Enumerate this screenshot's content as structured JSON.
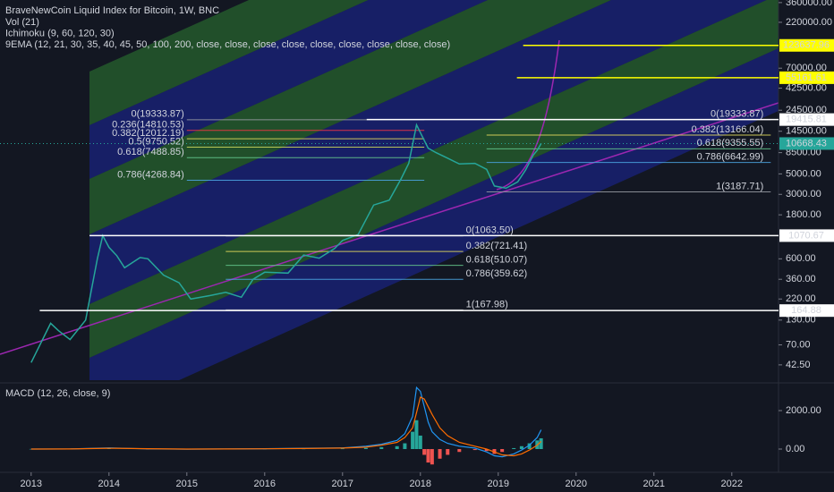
{
  "chart_data": [
    {
      "type": "line",
      "log_scale": true,
      "title": "BraveNewCoin Liquid Index for Bitcoin, 1W, BNC",
      "indicators": [
        "Vol (21)",
        "Ichimoku (9, 60, 120, 30)",
        "9EMA (12, 21, 30, 35, 40, 45, 50, 100, 200, close, close, close, close, close, close, close, close, close)"
      ],
      "x": [
        2013.0,
        2013.25,
        2013.35,
        2013.5,
        2013.7,
        2013.85,
        2013.92,
        2014.0,
        2014.1,
        2014.2,
        2014.4,
        2014.5,
        2014.7,
        2014.9,
        2015.05,
        2015.3,
        2015.5,
        2015.7,
        2015.85,
        2016.0,
        2016.3,
        2016.5,
        2016.7,
        2016.9,
        2017.0,
        2017.2,
        2017.4,
        2017.6,
        2017.75,
        2017.85,
        2017.95,
        2018.0,
        2018.1,
        2018.2,
        2018.35,
        2018.5,
        2018.7,
        2018.85,
        2018.95,
        2019.1,
        2019.25,
        2019.35,
        2019.45,
        2019.5,
        2019.55
      ],
      "values": [
        45,
        120,
        100,
        80,
        130,
        600,
        1070,
        800,
        650,
        480,
        620,
        600,
        400,
        330,
        220,
        240,
        260,
        230,
        360,
        430,
        420,
        660,
        610,
        780,
        950,
        1100,
        2300,
        2600,
        4400,
        6500,
        17000,
        14000,
        9500,
        8500,
        7400,
        6400,
        6500,
        5600,
        3700,
        3500,
        4100,
        5500,
        8000,
        9000,
        10668.43
      ],
      "color": "#26a69a",
      "xlim": [
        2012.6,
        2022.6
      ],
      "ylim": [
        29,
        384000
      ],
      "xticks": [
        2013,
        2014,
        2015,
        2016,
        2017,
        2018,
        2019,
        2020,
        2021,
        2022
      ],
      "yticks": [
        {
          "value": 360000,
          "label": "360000.00"
        },
        {
          "value": 220000,
          "label": "220000.00"
        },
        {
          "value": 70000,
          "label": "70000.00"
        },
        {
          "value": 42500,
          "label": "42500.00"
        },
        {
          "value": 24500,
          "label": "24500.00"
        },
        {
          "value": 14500,
          "label": "14500.00"
        },
        {
          "value": 8500,
          "label": "8500.00"
        },
        {
          "value": 5000,
          "label": "5000.00"
        },
        {
          "value": 3000,
          "label": "3000.00"
        },
        {
          "value": 1800,
          "label": "1800.00"
        },
        {
          "value": 600,
          "label": "600.00"
        },
        {
          "value": 360,
          "label": "360.00"
        },
        {
          "value": 220,
          "label": "220.00"
        },
        {
          "value": 130,
          "label": "130.00"
        },
        {
          "value": 70,
          "label": "70.00"
        },
        {
          "value": 42.5,
          "label": "42.50"
        }
      ],
      "levels": [
        {
          "value": 123637.96,
          "x_start": 2019.32,
          "color": "#ffff00"
        },
        {
          "value": 55161.61,
          "x_start": 2019.24,
          "color": "#ffff00"
        },
        {
          "value": 19415.81,
          "x_start": 2017.31,
          "color": "#ffffff"
        },
        {
          "value": 1070.67,
          "x_start": 2013.75,
          "color": "#ffffff"
        },
        {
          "value": 164.88,
          "x_start": 2013.11,
          "color": "#ffffff"
        }
      ],
      "last_price": 10668.43,
      "fib_sets": [
        {
          "x": [
            2015.0,
            2018.05
          ],
          "levels": [
            {
              "value": 19333.87,
              "label": "0(19333.87)",
              "color": "#9598a1"
            },
            {
              "value": 14810.53,
              "label": "0.236(14810.53)",
              "color": "#f23645"
            },
            {
              "value": 12012.19,
              "label": "0.382(12012.19)",
              "color": "#e0d85c"
            },
            {
              "value": 9750.52,
              "label": "0.5(9750.52)",
              "color": "#c9d45c"
            },
            {
              "value": 7488.85,
              "label": "0.618(7488.85)",
              "color": "#63c58b"
            },
            {
              "value": 4268.84,
              "label": "0.786(4268.84)",
              "color": "#4aa3df"
            }
          ]
        },
        {
          "x": [
            2018.85,
            2022.5
          ],
          "levels": [
            {
              "value": 19333.87,
              "label": "0(19333.87)",
              "color": "#9598a1"
            },
            {
              "value": 13166.04,
              "label": "0.382(13166.04)",
              "color": "#e0d85c"
            },
            {
              "value": 9355.55,
              "label": "0.618(9355.55)",
              "color": "#63c58b"
            },
            {
              "value": 6642.99,
              "label": "0.786(6642.99)",
              "color": "#4aa3df"
            },
            {
              "value": 3187.71,
              "label": "1(3187.71)",
              "color": "#9598a1"
            }
          ]
        },
        {
          "x": [
            2015.5,
            2018.55
          ],
          "levels": [
            {
              "value": 1063.5,
              "label": "0(1063.50)",
              "color": "#9598a1"
            },
            {
              "value": 721.41,
              "label": "0.382(721.41)",
              "color": "#e0d85c"
            },
            {
              "value": 510.07,
              "label": "0.618(510.07)",
              "color": "#63c58b"
            },
            {
              "value": 359.62,
              "label": "0.786(359.62)",
              "color": "#4aa3df"
            },
            {
              "value": 167.98,
              "label": "1(167.98)",
              "color": "#9598a1"
            }
          ]
        }
      ]
    },
    {
      "type": "bar",
      "title": "MACD (12, 26, close, 9)",
      "x": [
        2013.0,
        2013.5,
        2014.0,
        2014.5,
        2015.0,
        2015.5,
        2016.0,
        2016.5,
        2017.0,
        2017.3,
        2017.5,
        2017.7,
        2017.8,
        2017.9,
        2017.95,
        2018.0,
        2018.05,
        2018.1,
        2018.15,
        2018.25,
        2018.35,
        2018.5,
        2018.7,
        2018.85,
        2018.95,
        2019.05,
        2019.2,
        2019.3,
        2019.4,
        2019.5,
        2019.55
      ],
      "values": [
        5,
        10,
        40,
        -10,
        -5,
        5,
        10,
        15,
        20,
        60,
        100,
        150,
        300,
        900,
        1500,
        700,
        -300,
        -700,
        -800,
        -500,
        -300,
        -150,
        -50,
        -100,
        -250,
        -150,
        50,
        150,
        300,
        450,
        560
      ],
      "macd": [
        0,
        5,
        60,
        10,
        -5,
        5,
        20,
        40,
        60,
        150,
        250,
        450,
        800,
        1700,
        3200,
        3000,
        2200,
        1400,
        900,
        500,
        300,
        150,
        50,
        -150,
        -350,
        -400,
        -250,
        -50,
        200,
        600,
        1000
      ],
      "signal": [
        0,
        5,
        40,
        20,
        0,
        3,
        15,
        30,
        50,
        100,
        200,
        350,
        600,
        1100,
        1900,
        2700,
        2600,
        2200,
        1800,
        1100,
        700,
        350,
        150,
        0,
        -150,
        -300,
        -350,
        -250,
        -50,
        200,
        400
      ],
      "colors": {
        "up": "#26a69a",
        "down": "#ef5350",
        "macd": "#2196f3",
        "signal": "#ff6d00"
      },
      "xlim": [
        2012.6,
        2022.6
      ],
      "ylim": [
        -837,
        3349
      ],
      "yticks": [
        {
          "value": 2000,
          "label": "2000.00"
        },
        {
          "value": 0,
          "label": "0.00"
        }
      ]
    }
  ]
}
